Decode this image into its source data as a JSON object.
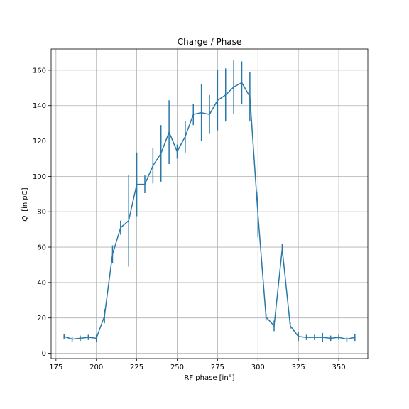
{
  "chart_data": {
    "type": "line",
    "title": "Charge / Phase",
    "xlabel": "RF phase [in°]",
    "ylabel_symbol": "Q",
    "ylabel_unit": "[in  pC]",
    "xlim": [
      172,
      368
    ],
    "ylim": [
      -3,
      172
    ],
    "xticks": [
      175,
      200,
      225,
      250,
      275,
      300,
      325,
      350
    ],
    "yticks": [
      0,
      20,
      40,
      60,
      80,
      100,
      120,
      140,
      160
    ],
    "grid": true,
    "line_color": "#2878a8",
    "series": [
      {
        "x": [
          180,
          185,
          190,
          195,
          200,
          205,
          210,
          215,
          220,
          225,
          230,
          235,
          240,
          245,
          250,
          255,
          260,
          265,
          270,
          275,
          280,
          285,
          290,
          295,
          300,
          305,
          310,
          315,
          320,
          325,
          330,
          335,
          340,
          345,
          350,
          355,
          360
        ],
        "y": [
          9.5,
          8,
          8.5,
          9,
          8.5,
          21,
          56,
          71,
          75,
          95.5,
          95.5,
          106,
          113,
          125,
          114,
          122.5,
          135,
          136,
          135,
          143,
          146,
          150.5,
          153,
          145,
          78.5,
          20.5,
          15.5,
          59,
          15.5,
          9.5,
          9,
          9,
          9,
          8.5,
          9,
          8,
          9
        ],
        "err": [
          1.5,
          1.5,
          1.5,
          1.5,
          2.0,
          4.0,
          5.0,
          4.0,
          26,
          18,
          5.0,
          10,
          16,
          18,
          4.0,
          9.0,
          6.0,
          16,
          11,
          17,
          15,
          15,
          12,
          14,
          13,
          2.0,
          3.0,
          3.0,
          2.0,
          2.5,
          1.5,
          1.5,
          2.5,
          1.5,
          1.5,
          1.5,
          2.0
        ]
      }
    ]
  }
}
